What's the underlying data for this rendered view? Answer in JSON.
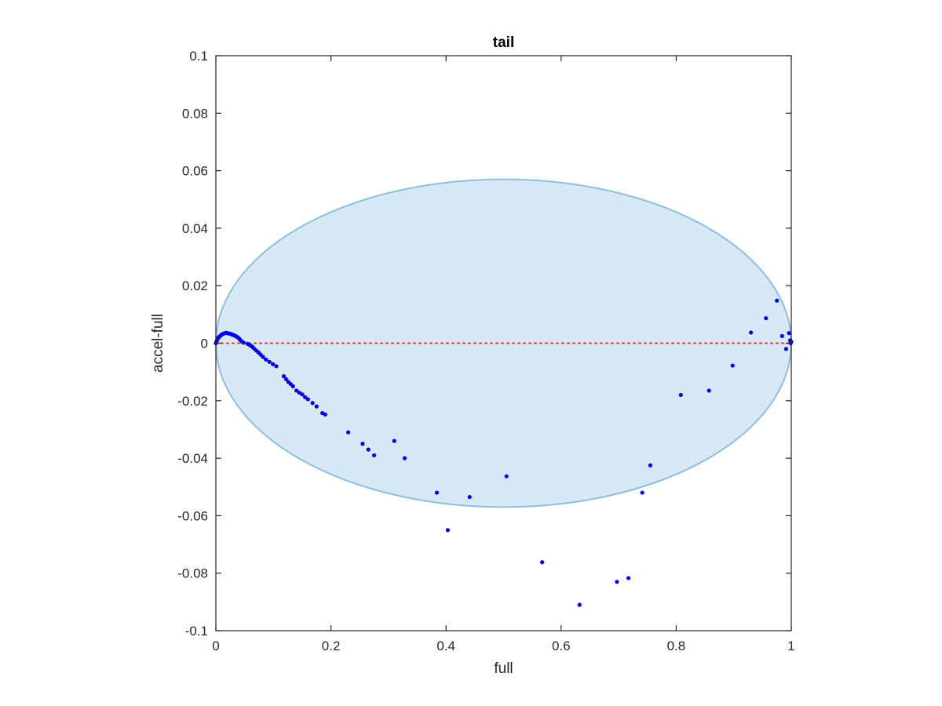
{
  "chart_data": {
    "type": "scatter",
    "title": "tail",
    "xlabel": "full",
    "ylabel": "accel-full",
    "xlim": [
      0,
      1
    ],
    "ylim": [
      -0.1,
      0.1
    ],
    "x_ticks": [
      0,
      0.2,
      0.4,
      0.6,
      0.8,
      1
    ],
    "x_tick_labels": [
      "0",
      "0.2",
      "0.4",
      "0.6",
      "0.8",
      "1"
    ],
    "y_ticks": [
      -0.1,
      -0.08,
      -0.06,
      -0.04,
      -0.02,
      0,
      0.02,
      0.04,
      0.06,
      0.08,
      0.1
    ],
    "y_tick_labels": [
      "-0.1",
      "-0.08",
      "-0.06",
      "-0.04",
      "-0.02",
      "0",
      "0.02",
      "0.04",
      "0.06",
      "0.08",
      "0.1"
    ],
    "grid": false,
    "colors": {
      "points": "#0000ee",
      "zero_line": "#e8302a",
      "ellipse_fill": "#d8e8f4",
      "ellipse_edge": "#8dbfe0",
      "axes": "#262626"
    },
    "ellipse": {
      "center": [
        0.5,
        0.0
      ],
      "semi_axes": [
        0.5,
        0.057
      ]
    },
    "reference_line": {
      "y": 0,
      "style": "dotted"
    },
    "series": [
      {
        "points": [
          [
            0.0,
            0.0
          ],
          [
            0.001,
            0.0005
          ],
          [
            0.002,
            0.001
          ],
          [
            0.003,
            0.0015
          ],
          [
            0.004,
            0.0018
          ],
          [
            0.005,
            0.002
          ],
          [
            0.006,
            0.0023
          ],
          [
            0.008,
            0.0026
          ],
          [
            0.01,
            0.003
          ],
          [
            0.012,
            0.0032
          ],
          [
            0.014,
            0.0034
          ],
          [
            0.016,
            0.0035
          ],
          [
            0.018,
            0.0036
          ],
          [
            0.02,
            0.0035
          ],
          [
            0.022,
            0.0034
          ],
          [
            0.024,
            0.0033
          ],
          [
            0.026,
            0.0032
          ],
          [
            0.028,
            0.003
          ],
          [
            0.03,
            0.0029
          ],
          [
            0.032,
            0.0027
          ],
          [
            0.034,
            0.0025
          ],
          [
            0.036,
            0.0023
          ],
          [
            0.038,
            0.002
          ],
          [
            0.04,
            0.0017
          ],
          [
            0.042,
            0.0012
          ],
          [
            0.045,
            0.0006
          ],
          [
            0.048,
            0.0002
          ],
          [
            0.055,
            -0.0002
          ],
          [
            0.058,
            -0.0005
          ],
          [
            0.06,
            -0.0008
          ],
          [
            0.063,
            -0.0012
          ],
          [
            0.066,
            -0.0018
          ],
          [
            0.07,
            -0.0025
          ],
          [
            0.074,
            -0.0032
          ],
          [
            0.078,
            -0.004
          ],
          [
            0.082,
            -0.0048
          ],
          [
            0.087,
            -0.0057
          ],
          [
            0.093,
            -0.0065
          ],
          [
            0.099,
            -0.0073
          ],
          [
            0.105,
            -0.008
          ],
          [
            0.118,
            -0.0115
          ],
          [
            0.122,
            -0.0125
          ],
          [
            0.126,
            -0.0135
          ],
          [
            0.13,
            -0.0142
          ],
          [
            0.134,
            -0.015
          ],
          [
            0.14,
            -0.0165
          ],
          [
            0.145,
            -0.0172
          ],
          [
            0.15,
            -0.0178
          ],
          [
            0.155,
            -0.0188
          ],
          [
            0.16,
            -0.0195
          ],
          [
            0.168,
            -0.0208
          ],
          [
            0.175,
            -0.022
          ],
          [
            0.185,
            -0.0243
          ],
          [
            0.19,
            -0.0248
          ],
          [
            0.23,
            -0.031
          ],
          [
            0.255,
            -0.035
          ],
          [
            0.265,
            -0.037
          ],
          [
            0.275,
            -0.039
          ],
          [
            0.31,
            -0.034
          ],
          [
            0.328,
            -0.04
          ],
          [
            0.384,
            -0.052
          ],
          [
            0.403,
            -0.065
          ],
          [
            0.441,
            -0.0535
          ],
          [
            0.505,
            -0.0463
          ],
          [
            0.567,
            -0.0762
          ],
          [
            0.632,
            -0.091
          ],
          [
            0.697,
            -0.083
          ],
          [
            0.717,
            -0.0817
          ],
          [
            0.741,
            -0.052
          ],
          [
            0.755,
            -0.0425
          ],
          [
            0.808,
            -0.018
          ],
          [
            0.857,
            -0.0165
          ],
          [
            0.898,
            -0.0078
          ],
          [
            0.93,
            0.0037
          ],
          [
            0.956,
            0.0087
          ],
          [
            0.975,
            0.0148
          ],
          [
            0.984,
            0.0025
          ],
          [
            0.991,
            -0.002
          ],
          [
            0.996,
            0.0035
          ],
          [
            0.998,
            0.001
          ],
          [
            0.999,
            0.0
          ],
          [
            1.0,
            0.0005
          ]
        ]
      }
    ]
  }
}
